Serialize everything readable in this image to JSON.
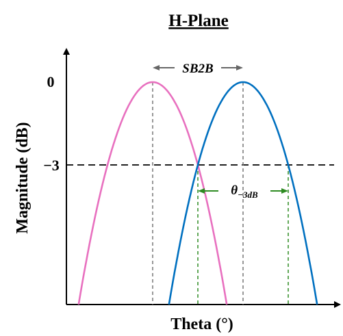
{
  "chart_data": {
    "type": "line",
    "title": "H-Plane",
    "xlabel": "Theta (°)",
    "ylabel": "Magnitude (dB)",
    "y_ticks": [
      {
        "value": 0,
        "label": "0"
      },
      {
        "value": -3,
        "label": "−3"
      }
    ],
    "grid": false,
    "legend": "none",
    "series": [
      {
        "color": "#e870bf",
        "shape": "inverted-parabola",
        "peak_x": -0.5,
        "peak_y": 0,
        "half_width_at_minus3": 0.5
      },
      {
        "color": "#0070c0",
        "shape": "inverted-parabola",
        "peak_x": 0.5,
        "peak_y": 0,
        "half_width_at_minus3": 0.5
      }
    ],
    "reference_line": {
      "y": -3,
      "style": "dashed",
      "color": "#000000"
    },
    "annotations": {
      "squint": {
        "label": "SB2B",
        "from_x": -0.5,
        "to_x": 0.5,
        "color": "#666666"
      },
      "beamwidth": {
        "label": "θ",
        "subscript": "−3dB",
        "from_x": 0.0,
        "to_x": 1.0,
        "color": "#2e8b22"
      }
    }
  }
}
